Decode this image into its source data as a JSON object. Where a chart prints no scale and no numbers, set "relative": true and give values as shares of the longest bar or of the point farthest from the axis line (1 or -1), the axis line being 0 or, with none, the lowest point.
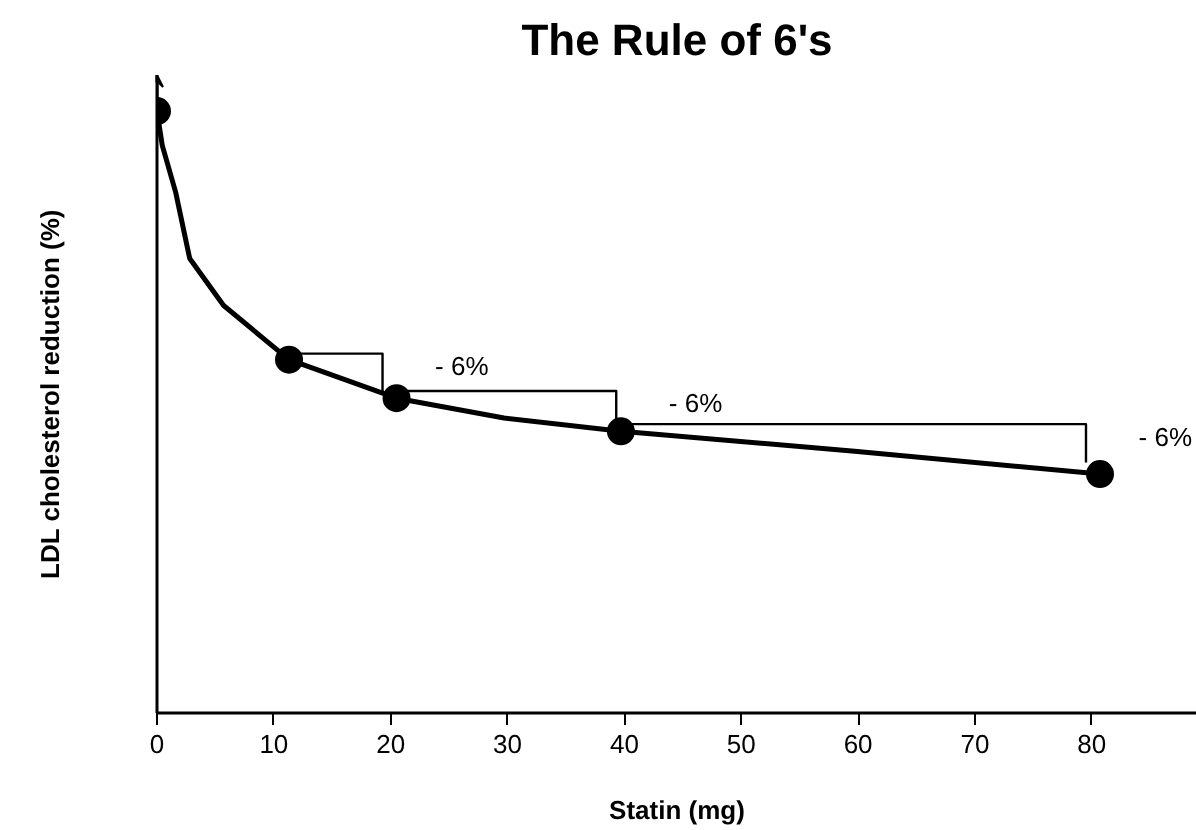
{
  "chart_data": {
    "type": "line",
    "title": "The Rule of 6's",
    "xlabel": "Statin (mg)",
    "ylabel": "LDL cholesterol reduction (%)",
    "relative": true,
    "xlim": [
      0,
      89
    ],
    "xticks": [
      0,
      10,
      20,
      30,
      40,
      50,
      60,
      70,
      80
    ],
    "grid": false,
    "series": [
      {
        "color": "#000000",
        "marker": "none",
        "x": [
          0,
          0.45,
          1.6,
          2.8,
          5.7,
          11.3,
          20.5,
          29.7,
          39.7,
          59.7,
          80.7
        ],
        "values": [
          1,
          0.943,
          0.865,
          0.755,
          0.677,
          0.587,
          0.523,
          0.49,
          0.468,
          0.435,
          0.397
        ]
      },
      {
        "type": "scatter",
        "color": "#000000",
        "marker": "circle",
        "x": [
          0,
          11.3,
          20.5,
          39.7,
          80.7
        ],
        "values": [
          1,
          0.587,
          0.523,
          0.468,
          0.397
        ]
      },
      {
        "type": "line",
        "color": "#000000",
        "marker": "none",
        "x": [
          11.3,
          19.3,
          19.3
        ],
        "values": [
          0.597,
          0.597,
          0.535
        ]
      },
      {
        "type": "line",
        "color": "#000000",
        "marker": "none",
        "x": [
          20.5,
          39.3,
          39.3
        ],
        "values": [
          0.535,
          0.535,
          0.474
        ]
      },
      {
        "type": "line",
        "color": "#000000",
        "marker": "none",
        "x": [
          39.7,
          79.5,
          79.5
        ],
        "values": [
          0.48,
          0.48,
          0.416
        ]
      }
    ],
    "annotations": [
      "- 6%",
      "- 6%",
      "- 6%"
    ]
  }
}
